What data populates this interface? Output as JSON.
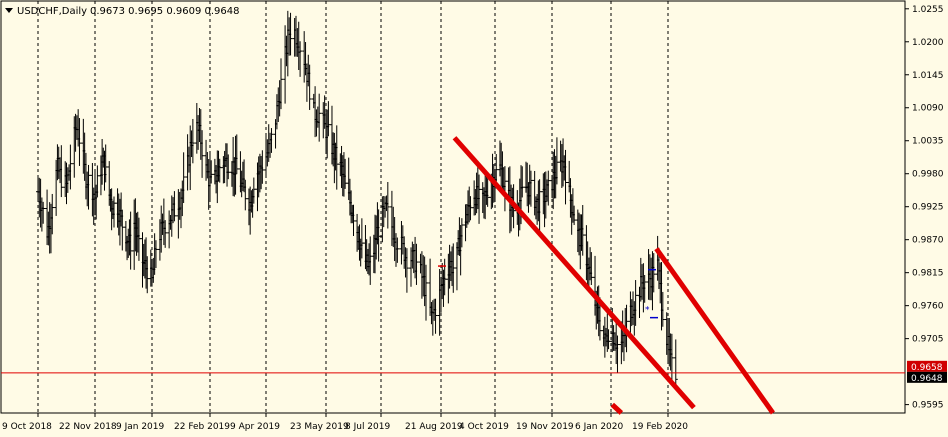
{
  "header": {
    "symbol": "USDCHF,Daily",
    "ohlc": "0.9673 0.9695 0.9609 0.9648"
  },
  "chart_data": {
    "type": "ohlc",
    "title": "USDCHF,Daily",
    "ylim": [
      0.9581,
      1.0268
    ],
    "y_ticks": [
      "1.0255",
      "1.0200",
      "1.0145",
      "1.0090",
      "1.0035",
      "0.9980",
      "0.9925",
      "0.9870",
      "0.9815",
      "0.9760",
      "0.9705",
      "0.9648",
      "0.9595"
    ],
    "x_ticks": [
      "9 Oct 2018",
      "22 Nov 2018",
      "9 Jan 2019",
      "22 Feb 2019",
      "9 Apr 2019",
      "23 May 2019",
      "8 Jul 2019",
      "21 Aug 2019",
      "4 Oct 2019",
      "19 Nov 2019",
      "6 Jan 2020",
      "19 Feb 2020"
    ],
    "grid": true,
    "current_price": 0.9648,
    "overlay_price": 0.9658,
    "series": [
      {
        "key": "closes",
        "values": [
          0.995,
          0.992,
          0.988,
          0.9935,
          0.999,
          0.997,
          0.996,
          1.001,
          1.006,
          1.003,
          0.9975,
          0.9965,
          0.994,
          0.9985,
          1.0,
          0.995,
          0.9925,
          0.993,
          0.99,
          0.988,
          0.986,
          0.99,
          0.9855,
          0.983,
          0.982,
          0.98,
          0.987,
          0.9885,
          0.99,
          0.991,
          0.9925,
          0.9945,
          0.9975,
          1.003,
          1.006,
          1.004,
          0.999,
          0.9965,
          0.997,
          0.999,
          1.0,
          1.0,
          0.9995,
          0.9985,
          0.996,
          0.9945,
          0.993,
          0.998,
          0.9985,
          1.0,
          1.002,
          1.005,
          1.0105,
          1.016,
          1.0215,
          1.022,
          1.02,
          1.0175,
          1.013,
          1.008,
          1.008,
          1.006,
          1.0045,
          1.002,
          1.0,
          0.9985,
          0.995,
          0.993,
          0.9905,
          0.987,
          0.984,
          0.9825,
          0.984,
          0.988,
          0.9905,
          0.992,
          0.9895,
          0.987,
          0.986,
          0.984,
          0.984,
          0.983,
          0.981,
          0.978,
          0.974,
          0.976,
          0.979,
          0.982,
          0.983,
          0.982,
          0.987,
          0.99,
          0.992,
          0.995,
          0.994,
          0.993,
          0.995,
          0.997,
          0.998,
          0.999,
          0.996,
          0.9935,
          0.992,
          0.993,
          0.995,
          0.996,
          0.995,
          0.993,
          0.9935,
          0.9945,
          0.996,
          0.998,
          0.999,
          1.0,
          0.995,
          0.992,
          0.988,
          0.987,
          0.984,
          0.98,
          0.976,
          0.973,
          0.97,
          0.972,
          0.971,
          0.969,
          0.97,
          0.974,
          0.976,
          0.978,
          0.98,
          0.98,
          0.981,
          0.984,
          0.977,
          0.971,
          0.966,
          0.9648
        ]
      },
      {
        "key": "down_trend_line",
        "name": "",
        "color": "#e00000",
        "points": [
          [
            "2019-09-01",
            1.004
          ],
          [
            "2020-03-10",
            0.959
          ]
        ]
      },
      {
        "key": "down_trend_line_2",
        "name": "",
        "color": "#e00000",
        "points": [
          [
            "2020-01-07",
            0.9595
          ],
          [
            "2020-01-14",
            0.9581
          ]
        ]
      },
      {
        "key": "channel_line",
        "name": "",
        "color": "#e00000",
        "points": [
          [
            "2020-02-10",
            0.9855
          ],
          [
            "2020-05-10",
            0.9581
          ]
        ]
      }
    ]
  },
  "colors": {
    "background": "#fffbe6",
    "bars": "#000000",
    "trend_line": "#e00000",
    "price_line": "#e00000",
    "badge_dark": "#000000",
    "badge_red": "#d00000"
  }
}
